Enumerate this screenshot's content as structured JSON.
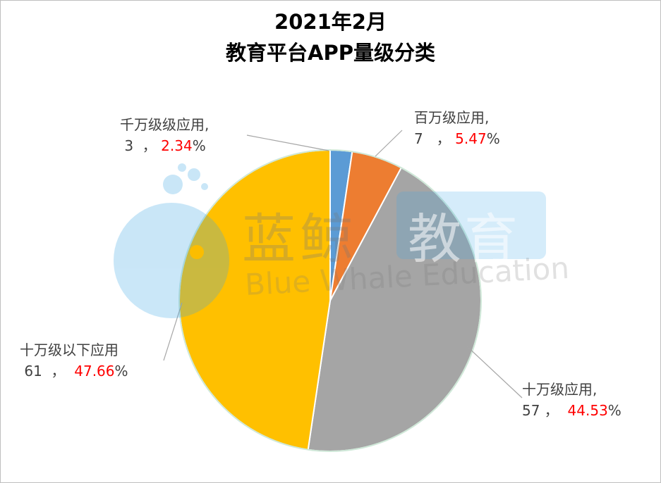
{
  "chart_data": {
    "type": "pie",
    "title": "2021年2月",
    "subtitle": "教育平台APP量级分类",
    "slices": [
      {
        "name": "千万级级应用",
        "count": "3",
        "pct_num": "2.34",
        "value": 2.34,
        "color": "#5b9bd5"
      },
      {
        "name": "百万级应用",
        "count": "7",
        "pct_num": "5.47",
        "value": 5.47,
        "color": "#ed7d31"
      },
      {
        "name": "十万级应用",
        "count": "57",
        "pct_num": "44.53",
        "value": 44.53,
        "color": "#a5a5a5"
      },
      {
        "name": "十万级以下应用",
        "count": "61",
        "pct_num": "47.66",
        "value": 47.66,
        "color": "#ffc000"
      }
    ]
  },
  "watermark": {
    "brand": "蓝鲸",
    "badge": "教育",
    "english": "Blue Whale Education",
    "logo_icon": "whale-logo-icon"
  }
}
